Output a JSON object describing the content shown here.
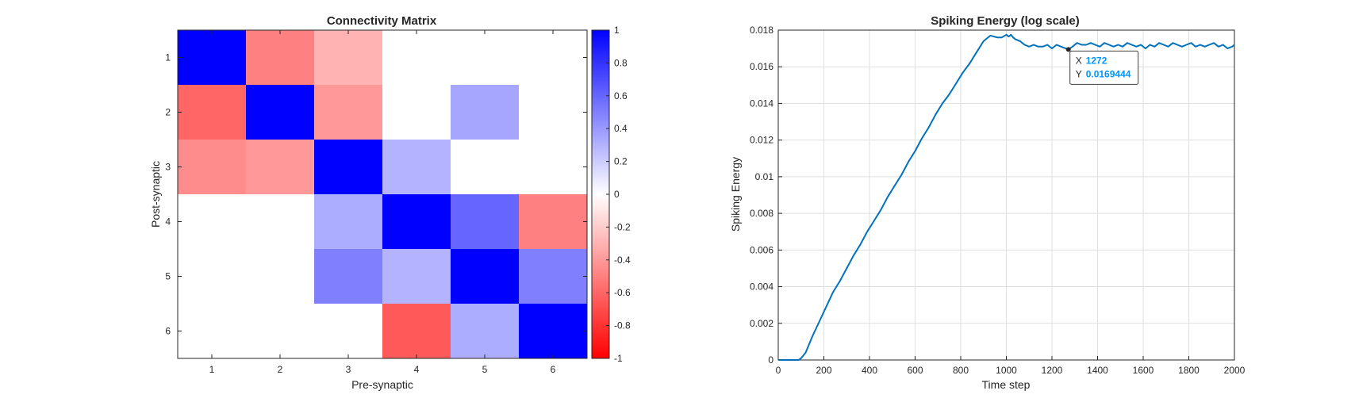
{
  "chart_data": [
    {
      "type": "heatmap",
      "title": "Connectivity Matrix",
      "xlabel": "Pre-synaptic",
      "ylabel": "Post-synaptic",
      "x_ticks": [
        "1",
        "2",
        "3",
        "4",
        "5",
        "6"
      ],
      "y_ticks": [
        "1",
        "2",
        "3",
        "4",
        "5",
        "6"
      ],
      "matrix": [
        [
          1.0,
          -0.5,
          -0.3,
          0.0,
          0.0,
          0.0
        ],
        [
          -0.6,
          1.0,
          -0.4,
          0.0,
          0.35,
          0.0
        ],
        [
          -0.45,
          -0.4,
          1.0,
          0.3,
          0.0,
          0.0
        ],
        [
          0.0,
          0.0,
          0.32,
          1.0,
          0.6,
          -0.5
        ],
        [
          0.0,
          0.0,
          0.5,
          0.3,
          1.0,
          0.5
        ],
        [
          0.0,
          0.0,
          0.0,
          -0.65,
          0.32,
          1.0
        ]
      ],
      "colorbar": {
        "range": [
          -1,
          1
        ],
        "ticks": [
          "1",
          "0.8",
          "0.6",
          "0.4",
          "0.2",
          "0",
          "-0.2",
          "-0.4",
          "-0.6",
          "-0.8",
          "-1"
        ],
        "positive_color": "#0000ff",
        "negative_color": "#ff0000",
        "zero_color": "#ffffff"
      }
    },
    {
      "type": "line",
      "title": "Spiking Energy (log scale)",
      "xlabel": "Time step",
      "ylabel": "Spiking Energy",
      "xlim": [
        0,
        2000
      ],
      "ylim": [
        0,
        0.018
      ],
      "x_ticks": [
        "0",
        "200",
        "400",
        "600",
        "800",
        "1000",
        "1200",
        "1400",
        "1600",
        "1800",
        "2000"
      ],
      "y_ticks": [
        "0",
        "0.002",
        "0.004",
        "0.006",
        "0.008",
        "0.01",
        "0.012",
        "0.014",
        "0.016",
        "0.018"
      ],
      "grid": true,
      "line_color": "#0072bd",
      "series": [
        {
          "name": "Spiking Energy",
          "x": [
            0,
            90,
            100,
            120,
            150,
            180,
            210,
            240,
            270,
            300,
            330,
            360,
            390,
            420,
            450,
            480,
            510,
            540,
            570,
            600,
            630,
            660,
            690,
            720,
            750,
            780,
            810,
            840,
            870,
            900,
            930,
            960,
            980,
            1000,
            1010,
            1020,
            1030,
            1040,
            1060,
            1080,
            1100,
            1120,
            1140,
            1160,
            1180,
            1200,
            1220,
            1240,
            1260,
            1272,
            1290,
            1310,
            1330,
            1350,
            1370,
            1390,
            1410,
            1430,
            1450,
            1470,
            1490,
            1510,
            1530,
            1550,
            1570,
            1590,
            1610,
            1630,
            1650,
            1670,
            1690,
            1710,
            1730,
            1750,
            1770,
            1790,
            1810,
            1830,
            1850,
            1870,
            1890,
            1910,
            1930,
            1950,
            1970,
            1990,
            2000
          ],
          "values": [
            0,
            0,
            0.0001,
            0.0004,
            0.0013,
            0.0021,
            0.0029,
            0.0037,
            0.0043,
            0.005,
            0.0057,
            0.0063,
            0.007,
            0.0076,
            0.0082,
            0.0089,
            0.0095,
            0.0101,
            0.0108,
            0.0114,
            0.0121,
            0.0127,
            0.0134,
            0.014,
            0.0145,
            0.0151,
            0.0157,
            0.0162,
            0.0168,
            0.0174,
            0.0177,
            0.0176,
            0.0176,
            0.01775,
            0.01765,
            0.01775,
            0.0176,
            0.0175,
            0.0174,
            0.0172,
            0.0171,
            0.0172,
            0.0171,
            0.0171,
            0.0172,
            0.017,
            0.0172,
            0.0171,
            0.017,
            0.0169444,
            0.0171,
            0.0173,
            0.0172,
            0.0172,
            0.0173,
            0.0172,
            0.0171,
            0.0173,
            0.0172,
            0.0171,
            0.0172,
            0.0171,
            0.0173,
            0.0172,
            0.0171,
            0.0172,
            0.017,
            0.0172,
            0.0171,
            0.0173,
            0.0172,
            0.0171,
            0.0173,
            0.0172,
            0.0171,
            0.0172,
            0.0173,
            0.0171,
            0.0172,
            0.0171,
            0.0172,
            0.0173,
            0.0171,
            0.0172,
            0.017,
            0.0171,
            0.0172
          ]
        }
      ],
      "datatip": {
        "x_label": "X",
        "y_label": "Y",
        "x_value": "1272",
        "y_value": "0.0169444",
        "x": 1272,
        "y": 0.0169444,
        "value_color": "#0096ff"
      }
    }
  ]
}
